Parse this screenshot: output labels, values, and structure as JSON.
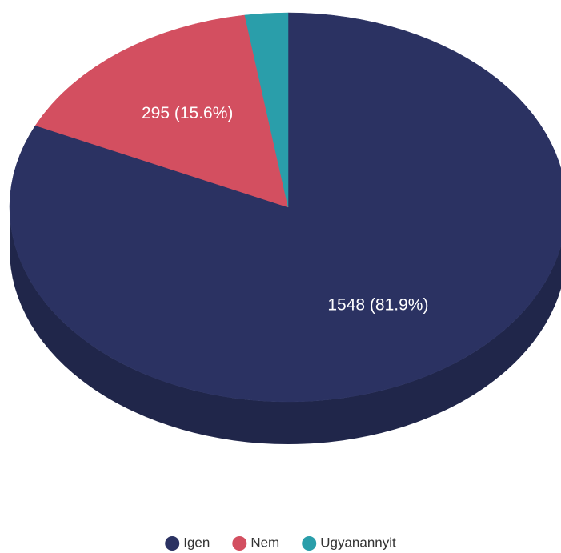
{
  "chart_data": {
    "type": "pie",
    "categories": [
      "Igen",
      "Nem",
      "Ugyanannyit"
    ],
    "values": [
      1548,
      295,
      47
    ],
    "value_labels": [
      "1548 (81.9%)",
      "295 (15.6%)",
      null
    ],
    "colors": [
      "#2b3262",
      "#d34f60",
      "#2a9eaa"
    ],
    "legend": "bottom"
  }
}
